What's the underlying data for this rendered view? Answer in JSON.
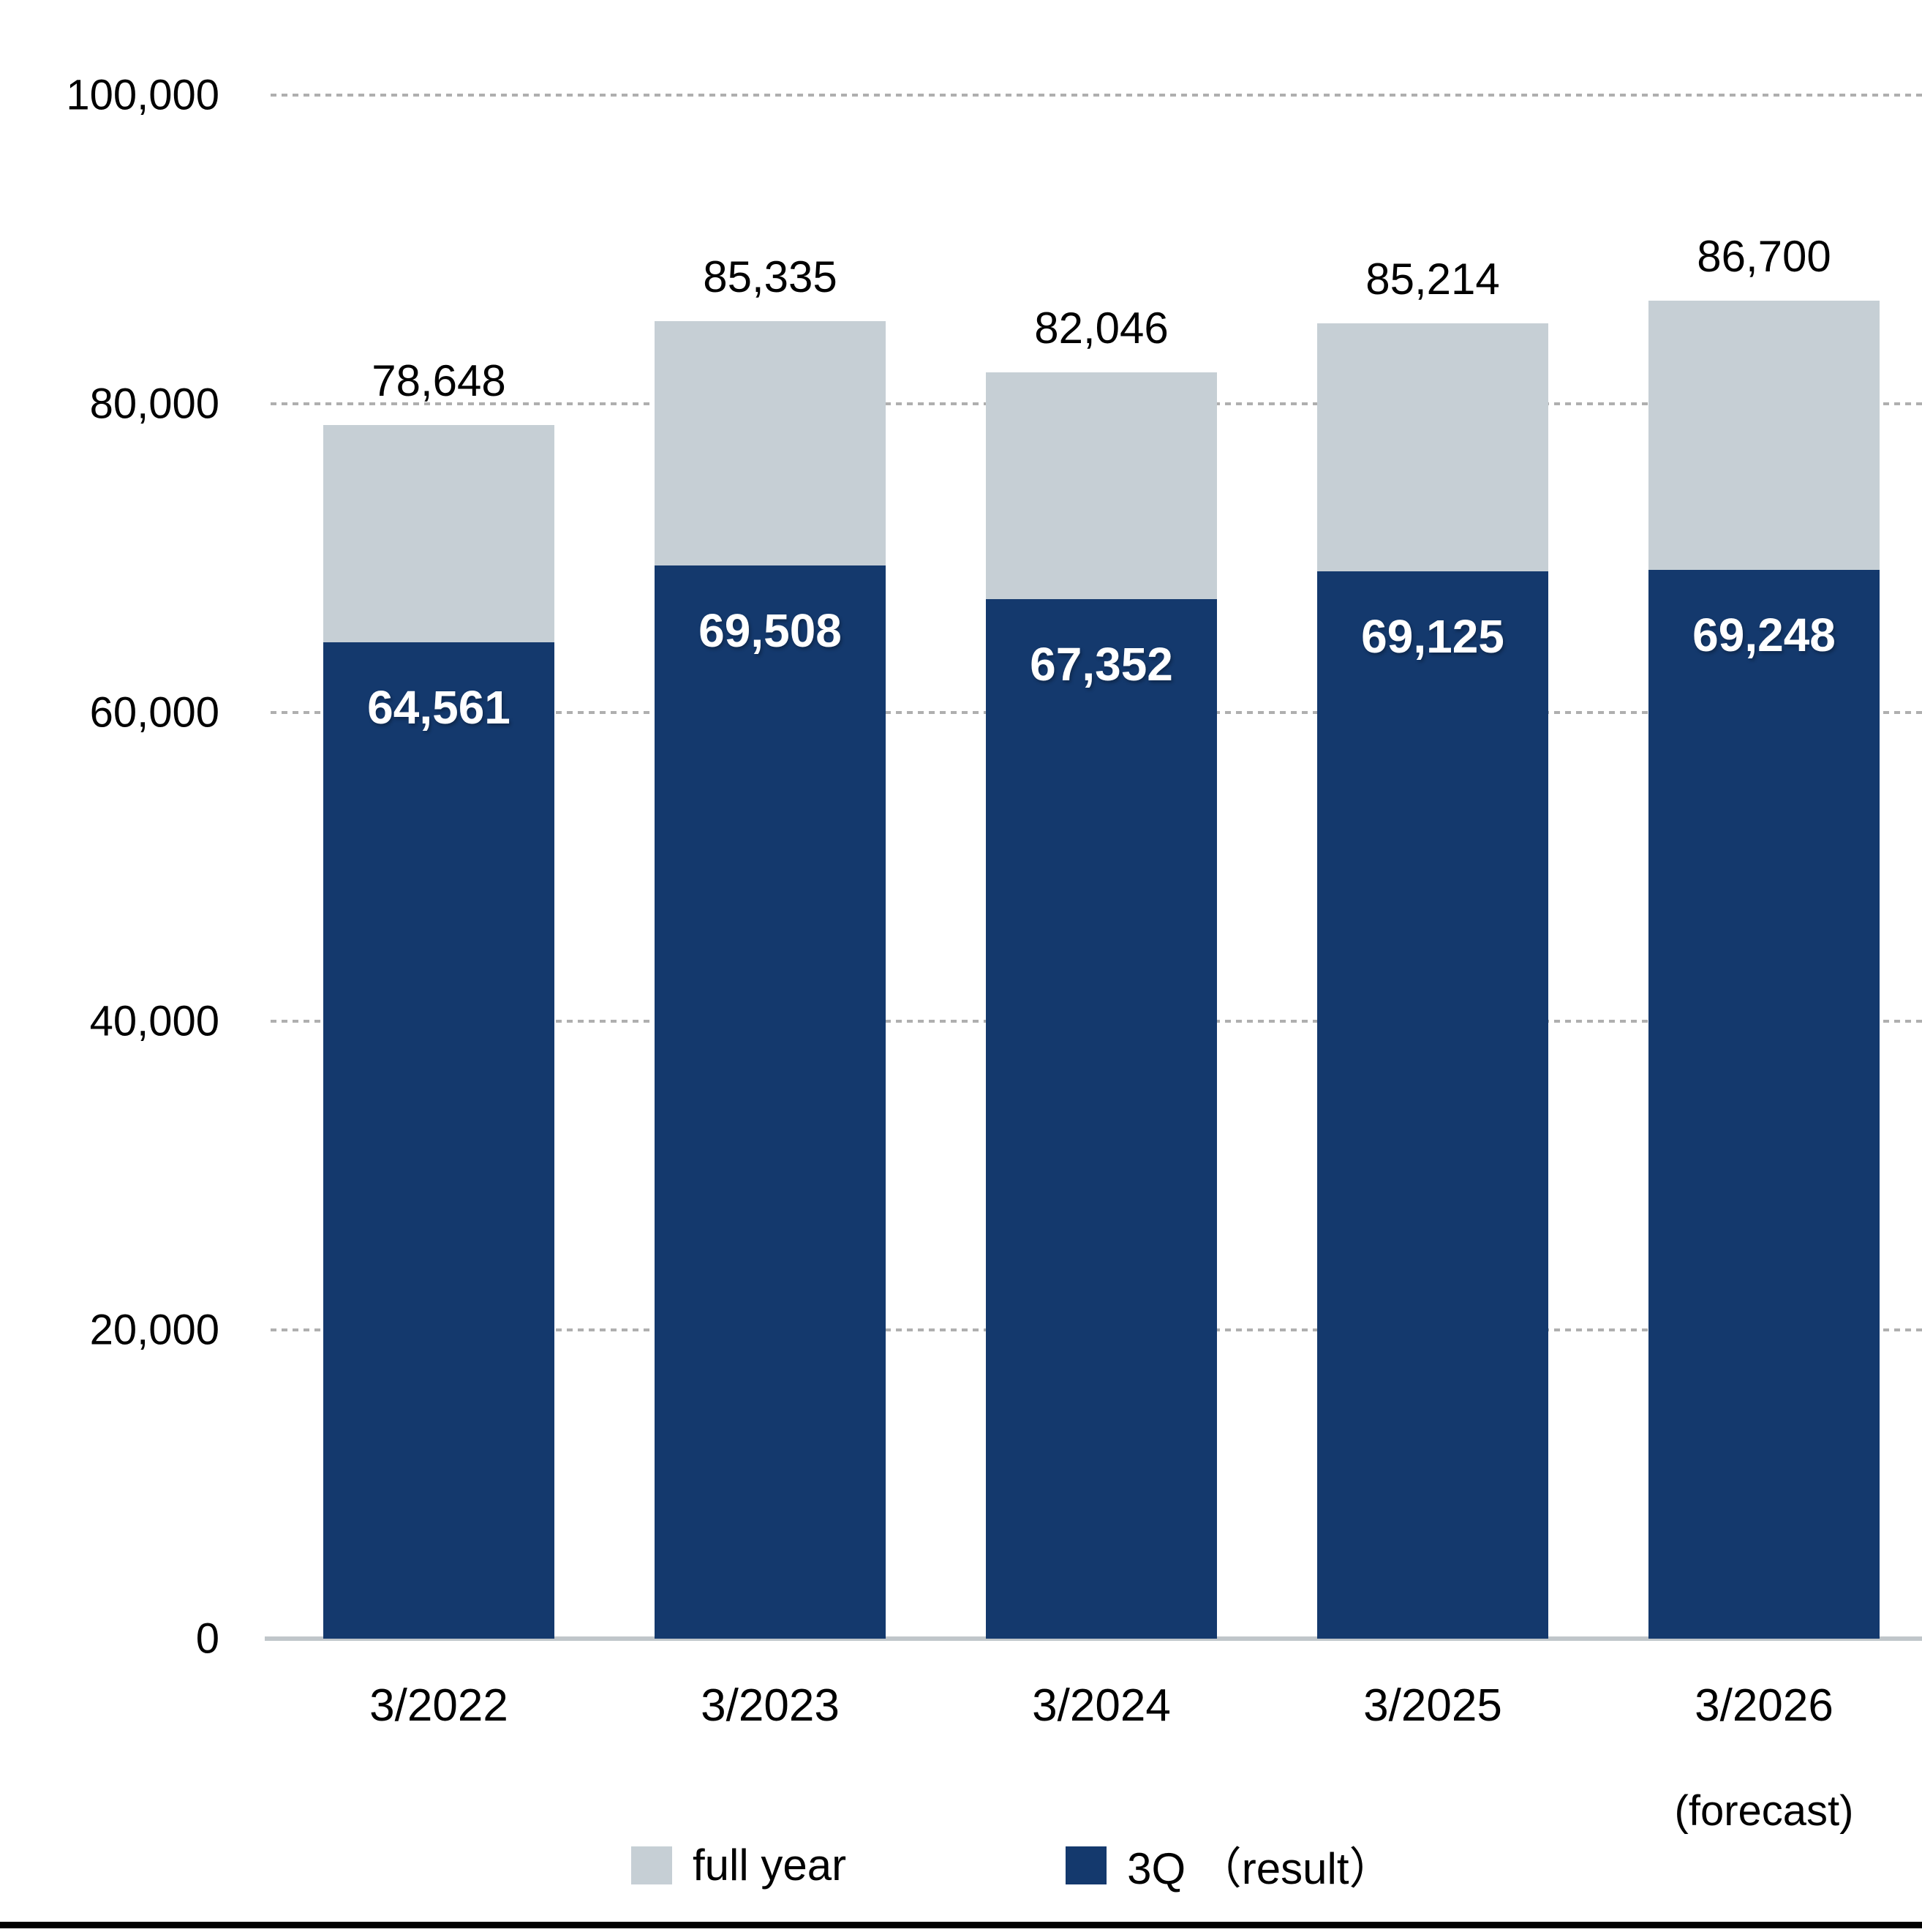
{
  "page": {
    "background": "#FFFFFF",
    "bottom_rule_color": "#000000"
  },
  "colors": {
    "grid": "#AFAFAF",
    "axis": "#C0C6CA",
    "text": "#000000",
    "bar_full_year": "#C6CFD5",
    "bar_3q": "#14396D"
  },
  "chart_data": {
    "type": "bar",
    "title": "",
    "categories": [
      "3/2022",
      "3/2023",
      "3/2024",
      "3/2025",
      "3/2026"
    ],
    "category_sublabels": [
      "",
      "",
      "",
      "",
      "(forecast)"
    ],
    "series": [
      {
        "name": "full year",
        "color": "#C6CFD5",
        "values": [
          78648,
          85335,
          82046,
          85214,
          86700
        ],
        "labels": [
          "78,648",
          "85,335",
          "82,046",
          "85,214",
          "86,700"
        ],
        "label_position": "above-bar",
        "label_color": "#000000"
      },
      {
        "name": "3Q （result）",
        "color": "#14396D",
        "values": [
          64561,
          69508,
          67352,
          69125,
          69248
        ],
        "labels": [
          "64,561",
          "69,508",
          "67,352",
          "69,125",
          "69,248"
        ],
        "label_position": "inside-bar-top",
        "label_color": "#FFFFFF"
      }
    ],
    "overlay": "3Q segment drawn from baseline inside full-year bar",
    "ylim": [
      0,
      100000
    ],
    "y_ticks": [
      {
        "value": 100000,
        "label": "100,000"
      },
      {
        "value": 80000,
        "label": "80,000"
      },
      {
        "value": 60000,
        "label": "60,000"
      },
      {
        "value": 40000,
        "label": "40,000"
      },
      {
        "value": 20000,
        "label": "20,000"
      },
      {
        "value": 0,
        "label": "0"
      }
    ],
    "grid": "dashed-horizontal",
    "legend_position": "bottom",
    "legend": [
      {
        "label": "full year",
        "color": "#C6CFD5"
      },
      {
        "label": "3Q （result）",
        "color": "#14396D"
      }
    ]
  }
}
